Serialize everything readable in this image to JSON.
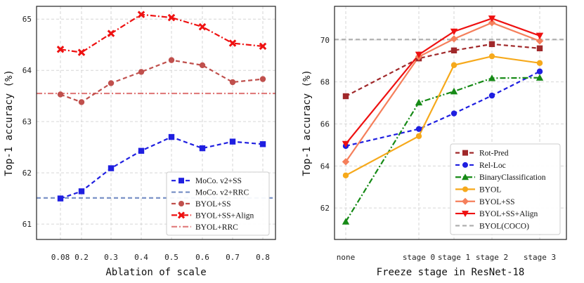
{
  "chart_data": [
    {
      "type": "line",
      "xlabel": "Ablation of scale",
      "ylabel": "Top-1 accuracy (%)",
      "categories": [
        "0.08",
        "0.2",
        "0.3",
        "0.4",
        "0.5",
        "0.6",
        "0.7",
        "0.8"
      ],
      "ylim": [
        60.7,
        65.25
      ],
      "yticks": [
        "61",
        "62",
        "63",
        "64",
        "65"
      ],
      "legend_position": "lower-right",
      "series": [
        {
          "name": "MoCo. v2+SS",
          "color": "#1f1fe0",
          "dash": "dashed",
          "marker": "square",
          "values": [
            61.5,
            61.64,
            62.09,
            62.43,
            62.7,
            62.48,
            62.61,
            62.56
          ]
        },
        {
          "name": "MoCo. v2+RRC",
          "color": "#7b93c7",
          "dash": "dashed",
          "marker": "none",
          "hline": 61.51
        },
        {
          "name": "BYOL+SS",
          "color": "#c0504d",
          "dash": "dashed",
          "marker": "circle",
          "values": [
            63.53,
            63.38,
            63.75,
            63.97,
            64.2,
            64.1,
            63.77,
            63.83
          ]
        },
        {
          "name": "BYOL+SS+Align",
          "color": "#ee1111",
          "dash": "dashdot",
          "marker": "x",
          "values": [
            64.41,
            64.35,
            64.72,
            65.09,
            65.03,
            64.85,
            64.53,
            64.47
          ]
        },
        {
          "name": "BYOL+RRC",
          "color": "#e07b7b",
          "dash": "dashdot",
          "marker": "none",
          "hline": 63.55
        }
      ]
    },
    {
      "type": "line",
      "xlabel": "Freeze stage in ResNet-18",
      "ylabel": "Top-1 accuracy (%)",
      "categories": [
        "none",
        "stage 0",
        "stage 1",
        "stage 2",
        "stage 3"
      ],
      "ylim": [
        60.5,
        71.6
      ],
      "yticks": [
        "62",
        "64",
        "66",
        "68",
        "70"
      ],
      "legend_position": "lower-right",
      "series": [
        {
          "name": "Rot-Pred",
          "color": "#a0282a",
          "dash": "dashed",
          "marker": "square",
          "values": [
            67.32,
            69.12,
            69.5,
            69.8,
            69.6
          ]
        },
        {
          "name": "Rel-Loc",
          "color": "#1f1fe0",
          "dash": "dashed",
          "marker": "circle",
          "values": [
            64.95,
            65.76,
            66.5,
            67.35,
            68.5
          ]
        },
        {
          "name": "BinaryClassification",
          "color": "#168a16",
          "dash": "dashdot",
          "marker": "triangle-up",
          "values": [
            61.35,
            67.02,
            67.55,
            68.18,
            68.2
          ]
        },
        {
          "name": "BYOL",
          "color": "#f6a91b",
          "dash": "solid",
          "marker": "circle",
          "values": [
            63.55,
            65.42,
            68.8,
            69.22,
            68.9
          ]
        },
        {
          "name": "BYOL+SS",
          "color": "#f57f5b",
          "dash": "solid",
          "marker": "diamond",
          "values": [
            64.2,
            69.2,
            70.05,
            70.82,
            69.95
          ]
        },
        {
          "name": "BYOL+SS+Align",
          "color": "#ee1111",
          "dash": "solid",
          "marker": "triangle-down",
          "values": [
            65.05,
            69.3,
            70.4,
            71.02,
            70.2
          ]
        },
        {
          "name": "BYOL(COCO)",
          "color": "#b0b0b0",
          "dash": "dashed",
          "marker": "none",
          "hline": 70.02
        }
      ]
    }
  ]
}
